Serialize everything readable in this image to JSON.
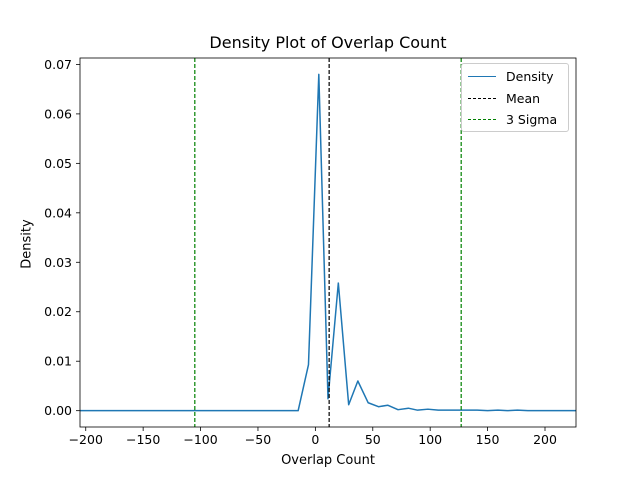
{
  "chart_data": {
    "type": "line",
    "title": "Density Plot of Overlap Count",
    "xlabel": "Overlap Count",
    "ylabel": "Density",
    "xlim": [
      -205,
      227
    ],
    "ylim": [
      -0.0033,
      0.0713
    ],
    "xticks": [
      -200,
      -150,
      -100,
      -50,
      0,
      50,
      100,
      150,
      200
    ],
    "xtick_labels": [
      "−200",
      "−150",
      "−100",
      "−50",
      "0",
      "50",
      "100",
      "150",
      "200"
    ],
    "yticks": [
      0.0,
      0.01,
      0.02,
      0.03,
      0.04,
      0.05,
      0.06,
      0.07
    ],
    "ytick_labels": [
      "0.00",
      "0.01",
      "0.02",
      "0.03",
      "0.04",
      "0.05",
      "0.06",
      "0.07"
    ],
    "grid": false,
    "legend_position": "upper right",
    "series": [
      {
        "name": "Density",
        "color": "#1f77b4",
        "style": "solid",
        "x": [
          -205,
          -15,
          -6,
          3,
          11,
          20,
          29,
          37,
          46,
          55,
          63,
          72,
          81,
          89,
          98,
          107,
          115,
          124,
          133,
          141,
          150,
          159,
          167,
          176,
          185,
          193,
          202,
          211,
          227
        ],
        "y": [
          0.0,
          0.0,
          0.0093,
          0.068,
          0.0024,
          0.0258,
          0.0012,
          0.006,
          0.0016,
          0.0008,
          0.0011,
          0.0002,
          0.0005,
          0.0001,
          0.0003,
          0.0001,
          0.0001,
          0.0001,
          0.0001,
          0.0001,
          0.0,
          0.0001,
          0.0,
          0.0001,
          0.0,
          0.0,
          0.0,
          0.0,
          0.0
        ]
      }
    ],
    "vlines": [
      {
        "name": "Mean",
        "x": 12,
        "color": "#000000",
        "style": "dashed"
      },
      {
        "name": "3 Sigma",
        "x": -105,
        "color": "#008000",
        "style": "dashed"
      },
      {
        "name": "3 Sigma",
        "x": 127,
        "color": "#008000",
        "style": "dashed"
      }
    ],
    "legend": [
      {
        "label": "Density",
        "color": "#1f77b4",
        "style": "solid"
      },
      {
        "label": "Mean",
        "color": "#000000",
        "style": "dashed"
      },
      {
        "label": "3 Sigma",
        "color": "#008000",
        "style": "dashed"
      }
    ]
  }
}
